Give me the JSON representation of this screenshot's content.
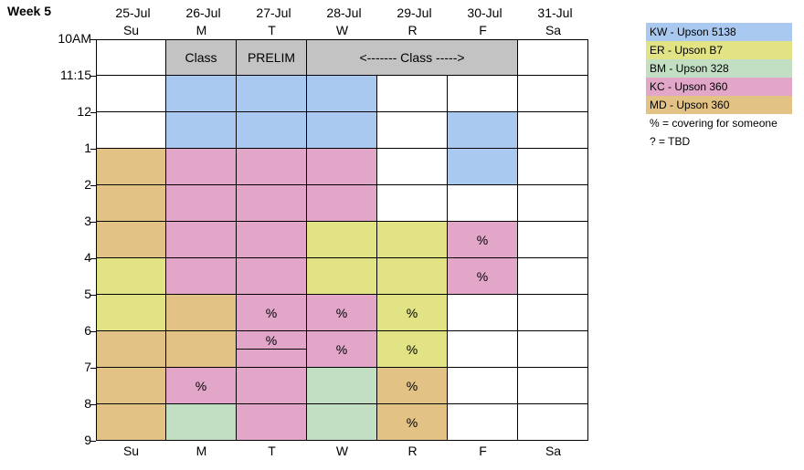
{
  "title": "Week 5",
  "dates": [
    "25-Jul",
    "26-Jul",
    "27-Jul",
    "28-Jul",
    "29-Jul",
    "30-Jul",
    "31-Jul"
  ],
  "days": [
    "Su",
    "M",
    "T",
    "W",
    "R",
    "F",
    "Sa"
  ],
  "times": [
    "10AM",
    "11:15",
    "12",
    "1",
    "2",
    "3",
    "4",
    "5",
    "6",
    "7",
    "8",
    "9"
  ],
  "colors": {
    "KW": "#a9c9f0",
    "ER": "#e2e384",
    "BM": "#c2dfc3",
    "KC": "#e2a6c9",
    "MD": "#e2c285",
    "class": "#c3c3c3"
  },
  "legend": [
    {
      "key": "KW",
      "label": "KW - Upson 5138"
    },
    {
      "key": "ER",
      "label": "ER - Upson B7"
    },
    {
      "key": "BM",
      "label": "BM - Upson 328"
    },
    {
      "key": "KC",
      "label": "KC - Upson 360"
    },
    {
      "key": "MD",
      "label": "MD - Upson 360"
    }
  ],
  "notes": [
    "% = covering for someone",
    "? = TBD"
  ],
  "blocks": [
    {
      "row": 0,
      "col": 1,
      "span": 1,
      "color": "class",
      "text": "Class"
    },
    {
      "row": 0,
      "col": 2,
      "span": 1,
      "color": "class",
      "text": "PRELIM"
    },
    {
      "row": 0,
      "col": 3,
      "span": 3,
      "color": "class",
      "text": "<------- Class ----->"
    },
    {
      "row": 1,
      "col": 1,
      "color": "KW",
      "text": ""
    },
    {
      "row": 1,
      "col": 2,
      "color": "KW",
      "text": ""
    },
    {
      "row": 1,
      "col": 3,
      "color": "KW",
      "text": ""
    },
    {
      "row": 2,
      "col": 1,
      "color": "KW",
      "text": ""
    },
    {
      "row": 2,
      "col": 2,
      "color": "KW",
      "text": ""
    },
    {
      "row": 2,
      "col": 3,
      "color": "KW",
      "text": ""
    },
    {
      "row": 2,
      "col": 5,
      "color": "KW",
      "text": ""
    },
    {
      "row": 3,
      "col": 0,
      "color": "MD",
      "text": ""
    },
    {
      "row": 3,
      "col": 1,
      "color": "KC",
      "text": ""
    },
    {
      "row": 3,
      "col": 2,
      "color": "KC",
      "text": ""
    },
    {
      "row": 3,
      "col": 3,
      "color": "KC",
      "text": ""
    },
    {
      "row": 3,
      "col": 5,
      "color": "KW",
      "text": ""
    },
    {
      "row": 4,
      "col": 0,
      "color": "MD",
      "text": ""
    },
    {
      "row": 4,
      "col": 1,
      "color": "KC",
      "text": ""
    },
    {
      "row": 4,
      "col": 2,
      "color": "KC",
      "text": ""
    },
    {
      "row": 4,
      "col": 3,
      "color": "KC",
      "text": ""
    },
    {
      "row": 5,
      "col": 0,
      "color": "MD",
      "text": ""
    },
    {
      "row": 5,
      "col": 1,
      "color": "KC",
      "text": ""
    },
    {
      "row": 5,
      "col": 2,
      "color": "KC",
      "text": ""
    },
    {
      "row": 5,
      "col": 3,
      "color": "ER",
      "text": ""
    },
    {
      "row": 5,
      "col": 4,
      "color": "ER",
      "text": ""
    },
    {
      "row": 5,
      "col": 5,
      "color": "KC",
      "text": "%"
    },
    {
      "row": 6,
      "col": 0,
      "color": "ER",
      "text": ""
    },
    {
      "row": 6,
      "col": 1,
      "color": "KC",
      "text": ""
    },
    {
      "row": 6,
      "col": 2,
      "color": "KC",
      "text": ""
    },
    {
      "row": 6,
      "col": 3,
      "color": "ER",
      "text": ""
    },
    {
      "row": 6,
      "col": 4,
      "color": "ER",
      "text": ""
    },
    {
      "row": 6,
      "col": 5,
      "color": "KC",
      "text": "%"
    },
    {
      "row": 7,
      "col": 0,
      "color": "ER",
      "text": ""
    },
    {
      "row": 7,
      "col": 1,
      "color": "MD",
      "text": ""
    },
    {
      "row": 7,
      "col": 2,
      "color": "KC",
      "text": "%"
    },
    {
      "row": 7,
      "col": 3,
      "color": "KC",
      "text": "%"
    },
    {
      "row": 7,
      "col": 4,
      "color": "ER",
      "text": "%"
    },
    {
      "row": 8,
      "col": 0,
      "color": "MD",
      "text": ""
    },
    {
      "row": 8,
      "col": 1,
      "color": "MD",
      "text": ""
    },
    {
      "row": 8,
      "col": 2,
      "color": "KC",
      "text": "%",
      "split": true
    },
    {
      "row": 8,
      "col": 3,
      "color": "KC",
      "text": "%"
    },
    {
      "row": 8,
      "col": 4,
      "color": "ER",
      "text": "%"
    },
    {
      "row": 9,
      "col": 0,
      "color": "MD",
      "text": ""
    },
    {
      "row": 9,
      "col": 1,
      "color": "KC",
      "text": "%"
    },
    {
      "row": 9,
      "col": 2,
      "color": "KC",
      "text": ""
    },
    {
      "row": 9,
      "col": 3,
      "color": "BM",
      "text": ""
    },
    {
      "row": 9,
      "col": 4,
      "color": "MD",
      "text": "%"
    },
    {
      "row": 10,
      "col": 0,
      "color": "MD",
      "text": ""
    },
    {
      "row": 10,
      "col": 1,
      "color": "BM",
      "text": ""
    },
    {
      "row": 10,
      "col": 2,
      "color": "KC",
      "text": ""
    },
    {
      "row": 10,
      "col": 3,
      "color": "BM",
      "text": ""
    },
    {
      "row": 10,
      "col": 4,
      "color": "MD",
      "text": "%"
    }
  ]
}
